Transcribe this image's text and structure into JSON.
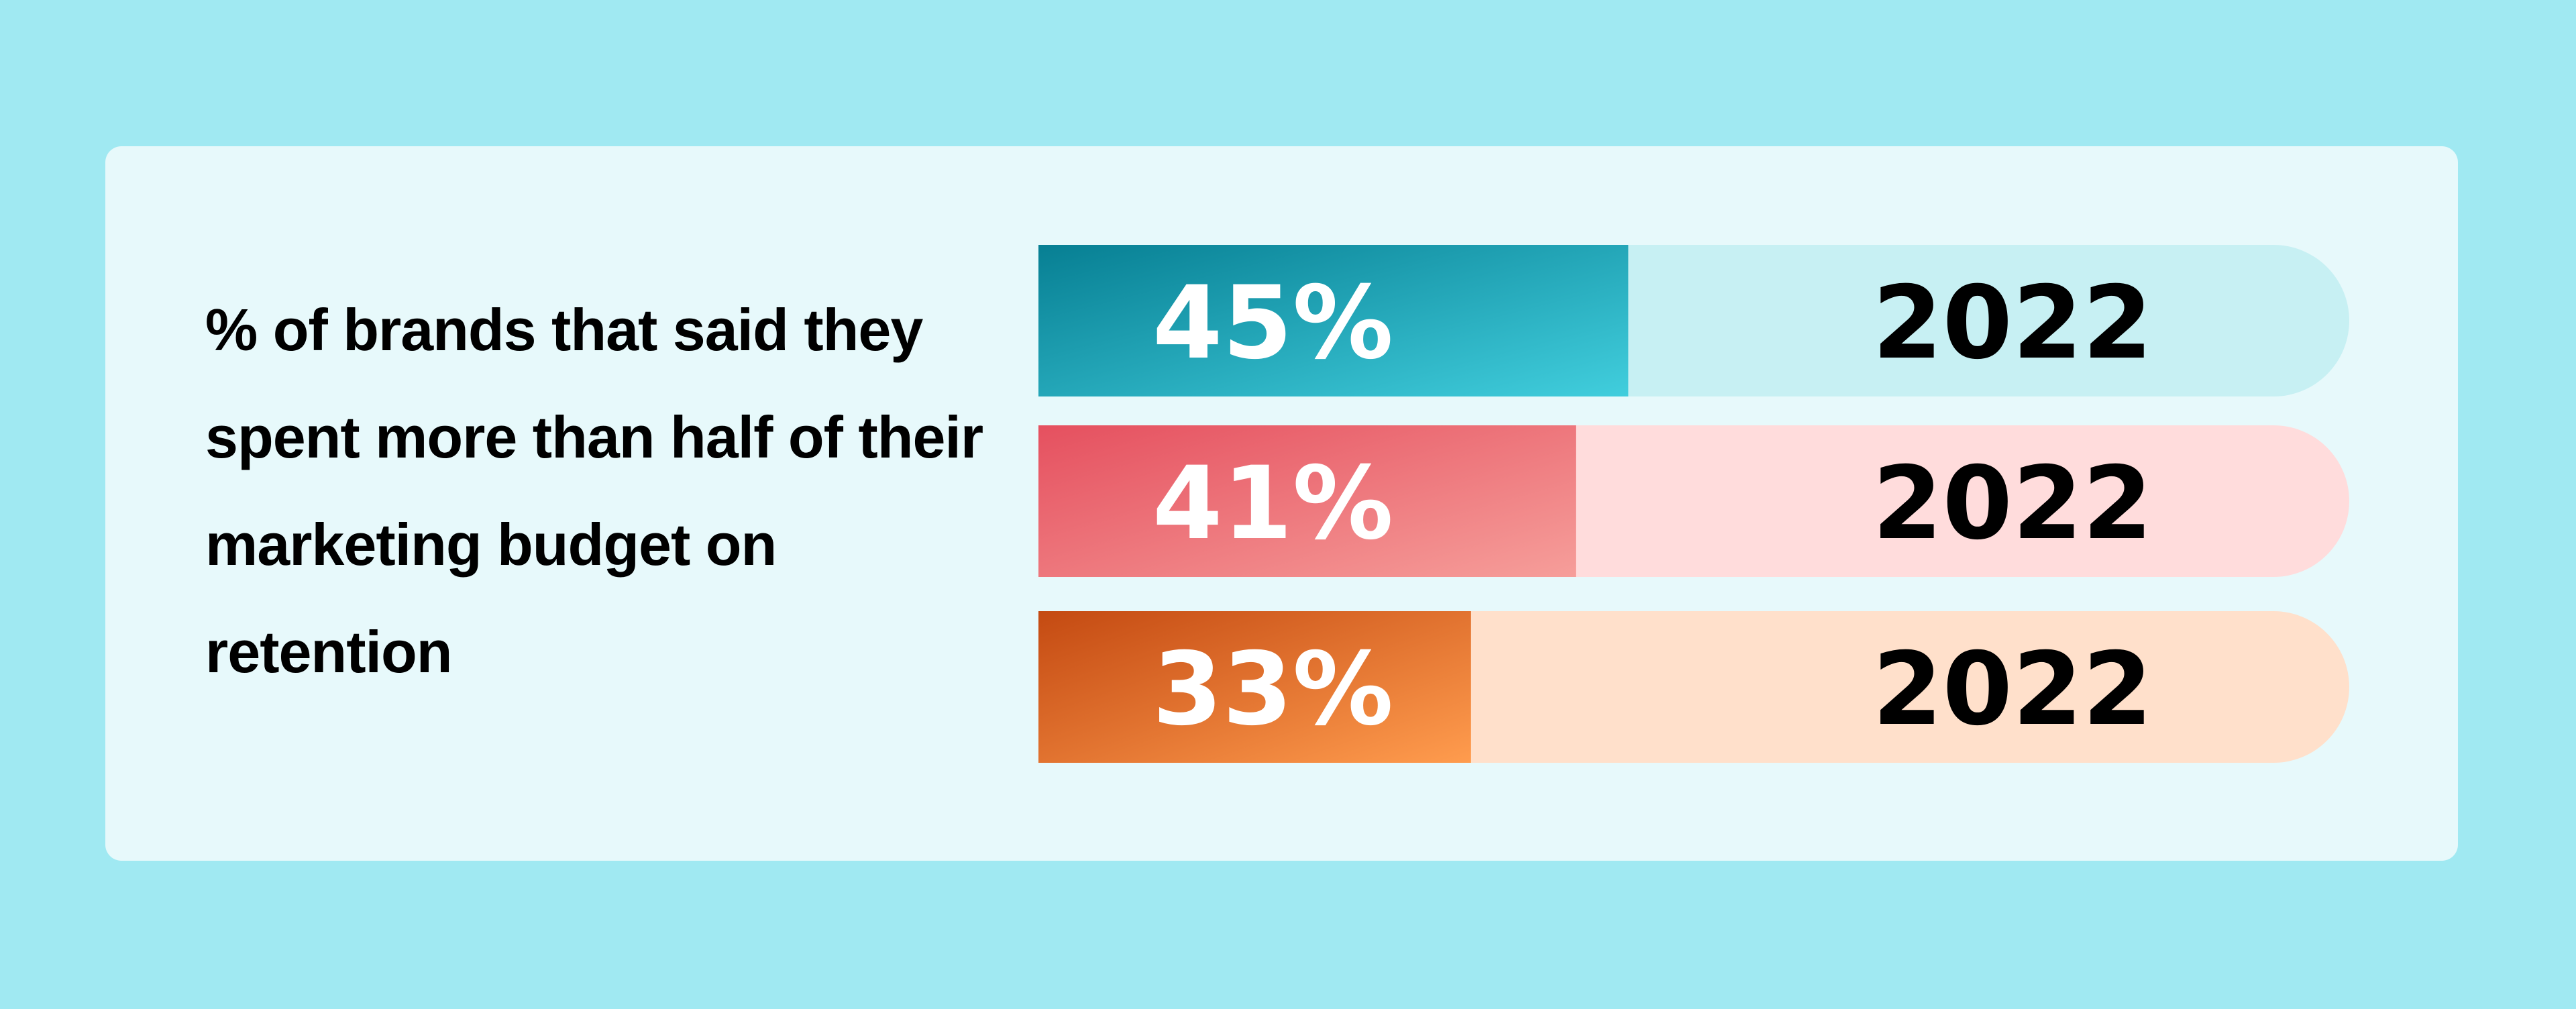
{
  "chart_data": {
    "type": "bar",
    "orientation": "horizontal",
    "title": "% of brands that said they spent more than half of their marketing budget on retention",
    "categories": [
      "2022",
      "2022",
      "2022"
    ],
    "values": [
      45,
      41,
      33
    ],
    "value_labels": [
      "45%",
      "41%",
      "33%"
    ],
    "xlim": [
      0,
      100
    ],
    "colors": [
      [
        "#077f93",
        "#41cedd"
      ],
      [
        "#e5505f",
        "#f69e9a"
      ],
      [
        "#c44a12",
        "#ff9c4e"
      ]
    ],
    "track_colors": [
      "#c7f0f3",
      "#ffdcdc",
      "#ffe0cb"
    ]
  }
}
